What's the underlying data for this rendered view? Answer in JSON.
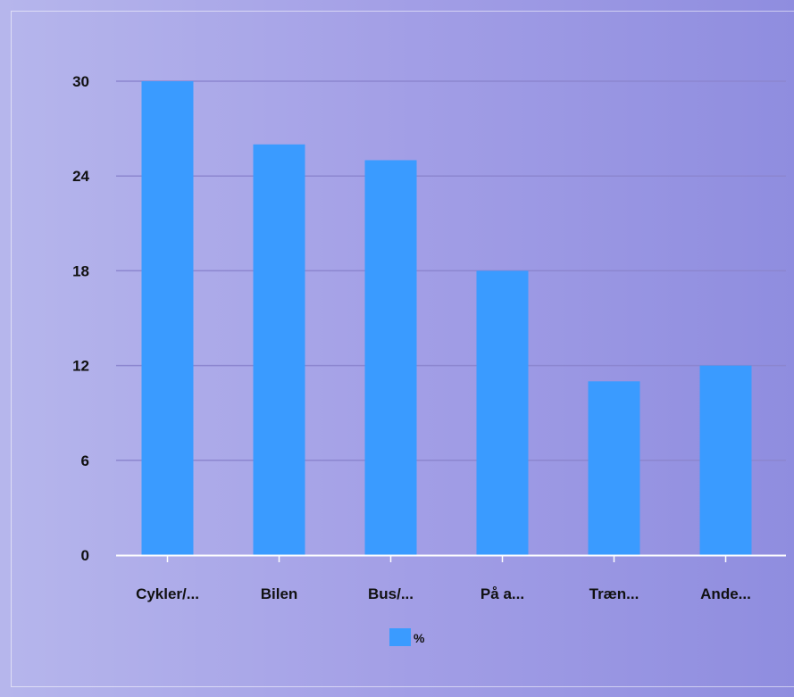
{
  "chart_data": {
    "type": "bar",
    "categories": [
      "Cykler/...",
      "Bilen",
      "Bus/...",
      "På a...",
      "Træn...",
      "Ande..."
    ],
    "series": [
      {
        "name": "%",
        "values": [
          30,
          26,
          25,
          18,
          11,
          12
        ]
      }
    ],
    "yticks": [
      "0",
      "6",
      "12",
      "18",
      "24",
      "30"
    ],
    "ylim": [
      0,
      30
    ],
    "grid": true,
    "legend": "bottom",
    "colors": {
      "bar": "#3a9bff",
      "grid": "#8c86cf",
      "axis": "#ffffff",
      "text": "#111111"
    }
  }
}
